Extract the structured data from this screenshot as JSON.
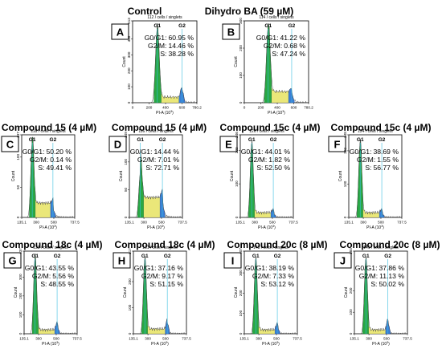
{
  "panels_meta": {
    "x_axis_label": "PI-A (10",
    "x_axis_exp": "3",
    "x_axis_close": ")",
    "y_axis_label": "Count"
  },
  "chart_data": [
    {
      "type": "area",
      "letter": "A",
      "title": "Control",
      "subtitle": "112 / cells / singlets",
      "xlim": [
        0,
        780.2
      ],
      "x_ticks": [
        "0",
        "200",
        "400",
        "600",
        "780.2"
      ],
      "ylim": [
        0,
        513
      ],
      "y_ticks": [
        "0",
        "100",
        "200",
        "300",
        "400",
        "513"
      ],
      "g1_label": "G1",
      "g2_label": "G2",
      "g1_peak": 300,
      "g2_peak": 600,
      "g1_height": 0.93,
      "g2_height": 0.13,
      "s_level": 0.07,
      "stats": [
        {
          "label": "G0/G1:",
          "value": "60.95 %"
        },
        {
          "label": "G2/M:",
          "value": "14.46 %"
        },
        {
          "label": "S:",
          "value": "38.28 %"
        }
      ]
    },
    {
      "type": "area",
      "letter": "B",
      "title": "Dihydro BA (59 µM)",
      "subtitle": "114 / cells / singlets",
      "xlim": [
        0,
        780.2
      ],
      "x_ticks": [
        "0",
        "200",
        "400",
        "600",
        "780.2"
      ],
      "ylim": [
        0,
        300
      ],
      "y_ticks": [
        "0",
        "100",
        "200",
        "300"
      ],
      "g1_label": "G1",
      "g2_label": "G2",
      "g1_peak": 290,
      "g2_peak": 575,
      "g1_height": 0.95,
      "g2_height": 0.05,
      "s_level": 0.14,
      "stats": [
        {
          "label": "G0/G1:",
          "value": "41.22 %"
        },
        {
          "label": "G2/M:",
          "value": "0.68 %"
        },
        {
          "label": "S:",
          "value": "47.24 %"
        }
      ]
    },
    {
      "type": "area",
      "letter": "C",
      "title": "Compound 15 (4 µM)",
      "subtitle": "118 / cells / singlets",
      "xlim": [
        135.1,
        737.5
      ],
      "x_ticks": [
        "135.1",
        "300",
        "500",
        "737.5"
      ],
      "ylim": [
        0,
        137
      ],
      "y_ticks": [
        "0",
        "50",
        "100",
        "137"
      ],
      "g1_label": "G1",
      "g2_label": "G2",
      "g1_peak": 255,
      "g2_peak": 490,
      "g1_height": 0.92,
      "g2_height": 0.05,
      "s_level": 0.18,
      "stats": [
        {
          "label": "G0/G1:",
          "value": "50.20 %"
        },
        {
          "label": "G2/M:",
          "value": "0.14 %"
        },
        {
          "label": "S:",
          "value": "49.41 %"
        }
      ]
    },
    {
      "type": "area",
      "letter": "D",
      "title": "Compound 15 (4 µM)",
      "subtitle": "116 / cells / singlets",
      "xlim": [
        135.1,
        737.5
      ],
      "x_ticks": [
        "135.1",
        "300",
        "500",
        "737.5"
      ],
      "ylim": [
        0,
        149
      ],
      "y_ticks": [
        "0",
        "50",
        "100",
        "149"
      ],
      "g1_label": "G1",
      "g2_label": "G2",
      "g1_peak": 260,
      "g2_peak": 510,
      "g1_height": 0.55,
      "g2_height": 0.1,
      "s_level": 0.25,
      "stats": [
        {
          "label": "G0/G1:",
          "value": "14.44 %"
        },
        {
          "label": "G2/M:",
          "value": "7.01 %"
        },
        {
          "label": "S:",
          "value": "72.71 %"
        }
      ]
    },
    {
      "type": "area",
      "letter": "E",
      "title": "Compound 15c (4 µM)",
      "subtitle": "126 / cells / singlets",
      "xlim": [
        135.1,
        737.5
      ],
      "x_ticks": [
        "135.1",
        "300",
        "500",
        "737.5"
      ],
      "ylim": [
        0,
        246
      ],
      "y_ticks": [
        "0",
        "100",
        "200",
        "246"
      ],
      "g1_label": "G1",
      "g2_label": "G2",
      "g1_peak": 265,
      "g2_peak": 510,
      "g1_height": 0.92,
      "g2_height": 0.05,
      "s_level": 0.06,
      "stats": [
        {
          "label": "G0/G1:",
          "value": "44.01 %"
        },
        {
          "label": "G2/M:",
          "value": "1.82 %"
        },
        {
          "label": "S:",
          "value": "52.50 %"
        }
      ]
    },
    {
      "type": "area",
      "letter": "F",
      "title": "Compound 15c (4 µM)",
      "subtitle": "124 / cells / singlets",
      "xlim": [
        135.1,
        737.5
      ],
      "x_ticks": [
        "135.1",
        "300",
        "500",
        "737.5"
      ],
      "ylim": [
        0,
        248
      ],
      "y_ticks": [
        "0",
        "100",
        "200",
        "248"
      ],
      "g1_label": "G1",
      "g2_label": "G2",
      "g1_peak": 265,
      "g2_peak": 510,
      "g1_height": 0.94,
      "g2_height": 0.05,
      "s_level": 0.06,
      "stats": [
        {
          "label": "G0/G1:",
          "value": "38.69 %"
        },
        {
          "label": "G2/M:",
          "value": "1.55 %"
        },
        {
          "label": "S:",
          "value": "56.77 %"
        }
      ]
    },
    {
      "type": "area",
      "letter": "G",
      "title": "Compound 18c (4 µM)",
      "subtitle": "133 / cells / singlets",
      "xlim": [
        135.1,
        737.5
      ],
      "x_ticks": [
        "135.1",
        "300",
        "500",
        "737.5"
      ],
      "ylim": [
        0,
        437
      ],
      "y_ticks": [
        "0",
        "100",
        "200",
        "300",
        "437"
      ],
      "g1_label": "G1",
      "g2_label": "G2",
      "g1_peak": 260,
      "g2_peak": 510,
      "g1_height": 0.95,
      "g2_height": 0.1,
      "s_level": 0.05,
      "stats": [
        {
          "label": "G0/G1:",
          "value": "43.55 %"
        },
        {
          "label": "G2/M:",
          "value": "5.56 %"
        },
        {
          "label": "S:",
          "value": "48.55 %"
        }
      ]
    },
    {
      "type": "area",
      "letter": "H",
      "title": "Compound 18c (4 µM)",
      "subtitle": "131 / cells / singlets",
      "xlim": [
        135.1,
        737.5
      ],
      "x_ticks": [
        "135.1",
        "300",
        "500",
        "737.5"
      ],
      "ylim": [
        0,
        317
      ],
      "y_ticks": [
        "0",
        "100",
        "200",
        "317"
      ],
      "g1_label": "G1",
      "g2_label": "G2",
      "g1_peak": 265,
      "g2_peak": 520,
      "g1_height": 0.93,
      "g2_height": 0.12,
      "s_level": 0.06,
      "stats": [
        {
          "label": "G0/G1:",
          "value": "37.16 %"
        },
        {
          "label": "G2/M:",
          "value": "9.17 %"
        },
        {
          "label": "S:",
          "value": "51.15 %"
        }
      ]
    },
    {
      "type": "area",
      "letter": "I",
      "title": "Compound 20c (8 µM)",
      "subtitle": "143 / cells / singlets",
      "xlim": [
        135.1,
        737.5
      ],
      "x_ticks": [
        "135.1",
        "300",
        "500",
        "737.5"
      ],
      "ylim": [
        0,
        407
      ],
      "y_ticks": [
        "0",
        "100",
        "200",
        "300",
        "407"
      ],
      "g1_label": "G1",
      "g2_label": "G2",
      "g1_peak": 265,
      "g2_peak": 510,
      "g1_height": 0.93,
      "g2_height": 0.09,
      "s_level": 0.05,
      "stats": [
        {
          "label": "G0/G1:",
          "value": "38.19 %"
        },
        {
          "label": "G2/M:",
          "value": "7.33 %"
        },
        {
          "label": "S:",
          "value": "53.12 %"
        }
      ]
    },
    {
      "type": "area",
      "letter": "J",
      "title": "Compound 20c (8 µM)",
      "subtitle": "141 / cells / singlets",
      "xlim": [
        135.1,
        737.5
      ],
      "x_ticks": [
        "135.1",
        "300",
        "500",
        "737.5"
      ],
      "ylim": [
        0,
        384
      ],
      "y_ticks": [
        "0",
        "100",
        "200",
        "384"
      ],
      "g1_label": "G1",
      "g2_label": "G2",
      "g1_peak": 265,
      "g2_peak": 515,
      "g1_height": 0.93,
      "g2_height": 0.14,
      "s_level": 0.05,
      "stats": [
        {
          "label": "G0/G1:",
          "value": "37.86 %"
        },
        {
          "label": "G2/M:",
          "value": "11.13 %"
        },
        {
          "label": "S:",
          "value": "50.02 %"
        }
      ]
    }
  ]
}
